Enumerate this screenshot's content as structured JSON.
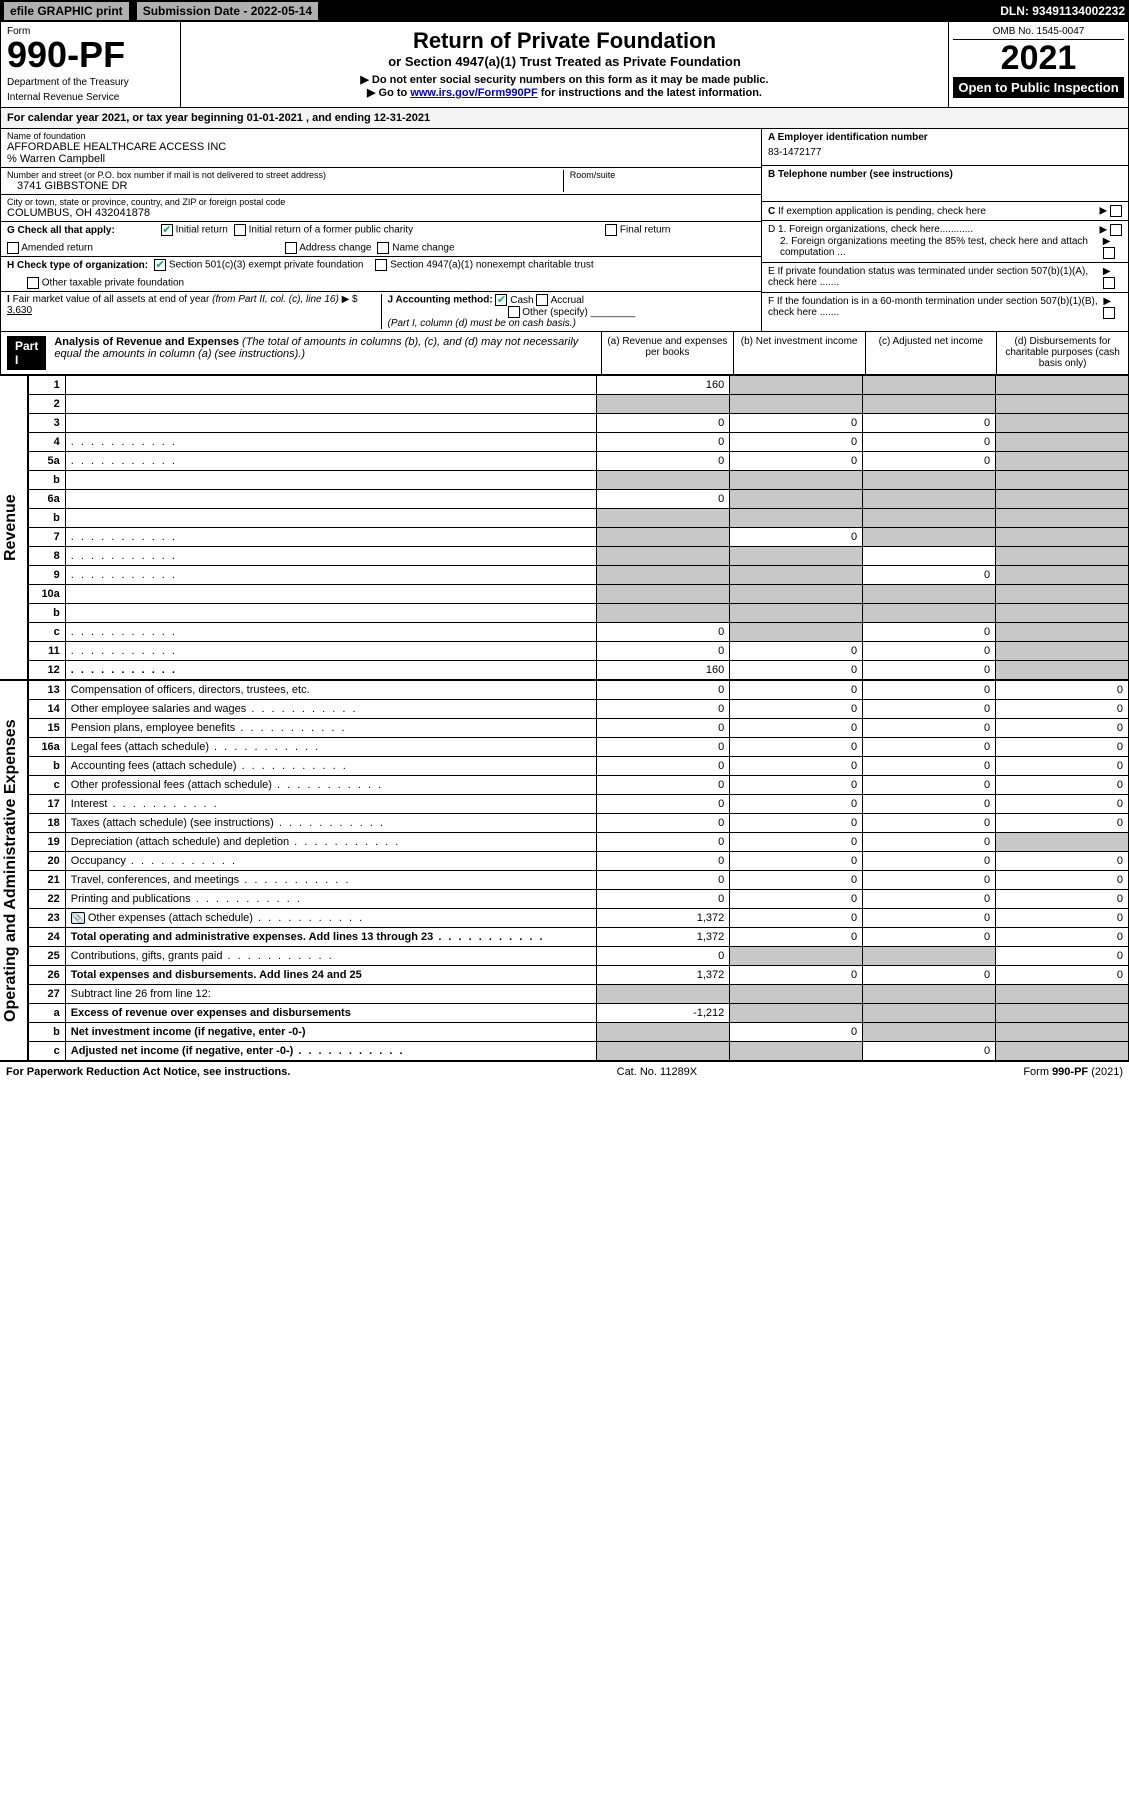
{
  "top_bar": {
    "efile": "efile GRAPHIC print",
    "submission_label": "Submission Date - 2022-05-14",
    "dln": "DLN: 93491134002232"
  },
  "header": {
    "form_label": "Form",
    "form_number": "990-PF",
    "dept1": "Department of the Treasury",
    "dept2": "Internal Revenue Service",
    "title": "Return of Private Foundation",
    "subtitle": "or Section 4947(a)(1) Trust Treated as Private Foundation",
    "instr1": "▶ Do not enter social security numbers on this form as it may be made public.",
    "instr2_pre": "▶ Go to ",
    "instr2_link": "www.irs.gov/Form990PF",
    "instr2_post": " for instructions and the latest information.",
    "omb": "OMB No. 1545-0047",
    "year": "2021",
    "open": "Open to Public Inspection"
  },
  "calendar": "For calendar year 2021, or tax year beginning 01-01-2021                , and ending 12-31-2021",
  "foundation": {
    "name_label": "Name of foundation",
    "name": "AFFORDABLE HEALTHCARE ACCESS INC",
    "care_of": "% Warren Campbell",
    "addr_label": "Number and street (or P.O. box number if mail is not delivered to street address)",
    "addr": "3741 GIBBSTONE DR",
    "room_label": "Room/suite",
    "city_label": "City or town, state or province, country, and ZIP or foreign postal code",
    "city": "COLUMBUS, OH  432041878"
  },
  "right_info": {
    "a_label": "A Employer identification number",
    "a_val": "83-1472177",
    "b_label": "B Telephone number (see instructions)",
    "c_label": "C If exemption application is pending, check here",
    "d1_label": "D 1. Foreign organizations, check here............",
    "d2_label": "2. Foreign organizations meeting the 85% test, check here and attach computation ...",
    "e_label": "E  If private foundation status was terminated under section 507(b)(1)(A), check here .......",
    "f_label": "F  If the foundation is in a 60-month termination under section 507(b)(1)(B), check here .......",
    "arrow": "▶"
  },
  "g_row": {
    "label": "G Check all that apply:",
    "opts": [
      "Initial return",
      "Initial return of a former public charity",
      "Final return",
      "Amended return",
      "Address change",
      "Name change"
    ],
    "checked": [
      true,
      false,
      false,
      false,
      false,
      false
    ]
  },
  "h_row": {
    "label": "H Check type of organization:",
    "opt1": "Section 501(c)(3) exempt private foundation",
    "opt2": "Section 4947(a)(1) nonexempt charitable trust",
    "opt3": "Other taxable private foundation",
    "checked": [
      true,
      false,
      false
    ]
  },
  "i_row": {
    "label": "I Fair market value of all assets at end of year (from Part II, col. (c), line 16) ▶ $",
    "val": "3,630"
  },
  "j_row": {
    "label": "J Accounting method:",
    "opts": [
      "Cash",
      "Accrual",
      "Other (specify)"
    ],
    "checked": [
      true,
      false,
      false
    ],
    "note": "(Part I, column (d) must be on cash basis.)"
  },
  "part1": {
    "badge": "Part I",
    "title": "Analysis of Revenue and Expenses",
    "desc": "(The total of amounts in columns (b), (c), and (d) may not necessarily equal the amounts in column (a) (see instructions).)",
    "cols": {
      "a": "(a)  Revenue and expenses per books",
      "b": "(b)  Net investment income",
      "c": "(c)  Adjusted net income",
      "d": "(d)  Disbursements for charitable purposes (cash basis only)"
    }
  },
  "side_labels": {
    "revenue": "Revenue",
    "expenses": "Operating and Administrative Expenses"
  },
  "rows": [
    {
      "n": "1",
      "d": "",
      "a": "160",
      "b": "",
      "c": "",
      "shade": [
        "b",
        "c",
        "d"
      ]
    },
    {
      "n": "2",
      "d": "",
      "a": "",
      "b": "",
      "c": "",
      "shade": [
        "a",
        "b",
        "c",
        "d"
      ],
      "bold_not": true
    },
    {
      "n": "3",
      "d": "",
      "a": "0",
      "b": "0",
      "c": "0",
      "shade": [
        "d"
      ]
    },
    {
      "n": "4",
      "d": "",
      "a": "0",
      "b": "0",
      "c": "0",
      "shade": [
        "d"
      ],
      "dots": true
    },
    {
      "n": "5a",
      "d": "",
      "a": "0",
      "b": "0",
      "c": "0",
      "shade": [
        "d"
      ],
      "dots": true
    },
    {
      "n": "b",
      "d": "",
      "a": "",
      "b": "",
      "c": "",
      "shade": [
        "a",
        "b",
        "c",
        "d"
      ]
    },
    {
      "n": "6a",
      "d": "",
      "a": "0",
      "b": "",
      "c": "",
      "shade": [
        "b",
        "c",
        "d"
      ]
    },
    {
      "n": "b",
      "d": "",
      "a": "",
      "b": "",
      "c": "",
      "shade": [
        "a",
        "b",
        "c",
        "d"
      ]
    },
    {
      "n": "7",
      "d": "",
      "a": "",
      "b": "0",
      "c": "",
      "shade": [
        "a",
        "c",
        "d"
      ],
      "dots": true
    },
    {
      "n": "8",
      "d": "",
      "a": "",
      "b": "",
      "c": "",
      "shade": [
        "a",
        "b",
        "d"
      ],
      "dots": true
    },
    {
      "n": "9",
      "d": "",
      "a": "",
      "b": "",
      "c": "0",
      "shade": [
        "a",
        "b",
        "d"
      ],
      "dots": true
    },
    {
      "n": "10a",
      "d": "",
      "a": "",
      "b": "",
      "c": "",
      "shade": [
        "a",
        "b",
        "c",
        "d"
      ]
    },
    {
      "n": "b",
      "d": "",
      "a": "",
      "b": "",
      "c": "",
      "shade": [
        "a",
        "b",
        "c",
        "d"
      ]
    },
    {
      "n": "c",
      "d": "",
      "a": "0",
      "b": "",
      "c": "0",
      "shade": [
        "b",
        "d"
      ],
      "dots": true
    },
    {
      "n": "11",
      "d": "",
      "a": "0",
      "b": "0",
      "c": "0",
      "shade": [
        "d"
      ],
      "dots": true
    },
    {
      "n": "12",
      "d": "",
      "a": "160",
      "b": "0",
      "c": "0",
      "shade": [
        "d"
      ],
      "bold": true,
      "dots": true
    }
  ],
  "exp_rows": [
    {
      "n": "13",
      "d": "Compensation of officers, directors, trustees, etc.",
      "a": "0",
      "b": "0",
      "c": "0",
      "dd": "0"
    },
    {
      "n": "14",
      "d": "Other employee salaries and wages",
      "a": "0",
      "b": "0",
      "c": "0",
      "dd": "0",
      "dots": true
    },
    {
      "n": "15",
      "d": "Pension plans, employee benefits",
      "a": "0",
      "b": "0",
      "c": "0",
      "dd": "0",
      "dots": true
    },
    {
      "n": "16a",
      "d": "Legal fees (attach schedule)",
      "a": "0",
      "b": "0",
      "c": "0",
      "dd": "0",
      "dots": true
    },
    {
      "n": "b",
      "d": "Accounting fees (attach schedule)",
      "a": "0",
      "b": "0",
      "c": "0",
      "dd": "0",
      "dots": true
    },
    {
      "n": "c",
      "d": "Other professional fees (attach schedule)",
      "a": "0",
      "b": "0",
      "c": "0",
      "dd": "0",
      "dots": true
    },
    {
      "n": "17",
      "d": "Interest",
      "a": "0",
      "b": "0",
      "c": "0",
      "dd": "0",
      "dots": true
    },
    {
      "n": "18",
      "d": "Taxes (attach schedule) (see instructions)",
      "a": "0",
      "b": "0",
      "c": "0",
      "dd": "0",
      "dots": true
    },
    {
      "n": "19",
      "d": "Depreciation (attach schedule) and depletion",
      "a": "0",
      "b": "0",
      "c": "0",
      "dd": "",
      "shade": [
        "d"
      ],
      "dots": true
    },
    {
      "n": "20",
      "d": "Occupancy",
      "a": "0",
      "b": "0",
      "c": "0",
      "dd": "0",
      "dots": true
    },
    {
      "n": "21",
      "d": "Travel, conferences, and meetings",
      "a": "0",
      "b": "0",
      "c": "0",
      "dd": "0",
      "dots": true
    },
    {
      "n": "22",
      "d": "Printing and publications",
      "a": "0",
      "b": "0",
      "c": "0",
      "dd": "0",
      "dots": true
    },
    {
      "n": "23",
      "d": "Other expenses (attach schedule)",
      "a": "1,372",
      "b": "0",
      "c": "0",
      "dd": "0",
      "icon": true,
      "dots": true
    },
    {
      "n": "24",
      "d": "Total operating and administrative expenses. Add lines 13 through 23",
      "a": "1,372",
      "b": "0",
      "c": "0",
      "dd": "0",
      "bold": true,
      "dots": true
    },
    {
      "n": "25",
      "d": "Contributions, gifts, grants paid",
      "a": "0",
      "b": "",
      "c": "",
      "dd": "0",
      "shade": [
        "b",
        "c"
      ],
      "dots": true
    },
    {
      "n": "26",
      "d": "Total expenses and disbursements. Add lines 24 and 25",
      "a": "1,372",
      "b": "0",
      "c": "0",
      "dd": "0",
      "bold": true
    },
    {
      "n": "27",
      "d": "Subtract line 26 from line 12:",
      "a": "",
      "b": "",
      "c": "",
      "dd": "",
      "shade": [
        "a",
        "b",
        "c",
        "d"
      ]
    },
    {
      "n": "a",
      "d": "Excess of revenue over expenses and disbursements",
      "a": "-1,212",
      "b": "",
      "c": "",
      "dd": "",
      "shade": [
        "b",
        "c",
        "d"
      ],
      "bold": true
    },
    {
      "n": "b",
      "d": "Net investment income (if negative, enter -0-)",
      "a": "",
      "b": "0",
      "c": "",
      "dd": "",
      "shade": [
        "a",
        "c",
        "d"
      ],
      "bold": true
    },
    {
      "n": "c",
      "d": "Adjusted net income (if negative, enter -0-)",
      "a": "",
      "b": "",
      "c": "0",
      "dd": "",
      "shade": [
        "a",
        "b",
        "d"
      ],
      "bold": true,
      "dots": true
    }
  ],
  "footer": {
    "left": "For Paperwork Reduction Act Notice, see instructions.",
    "mid": "Cat. No. 11289X",
    "right": "Form 990-PF (2021)"
  },
  "colors": {
    "shade": "#c8c8c8",
    "link": "#0000cc",
    "check": "#00aa44"
  }
}
